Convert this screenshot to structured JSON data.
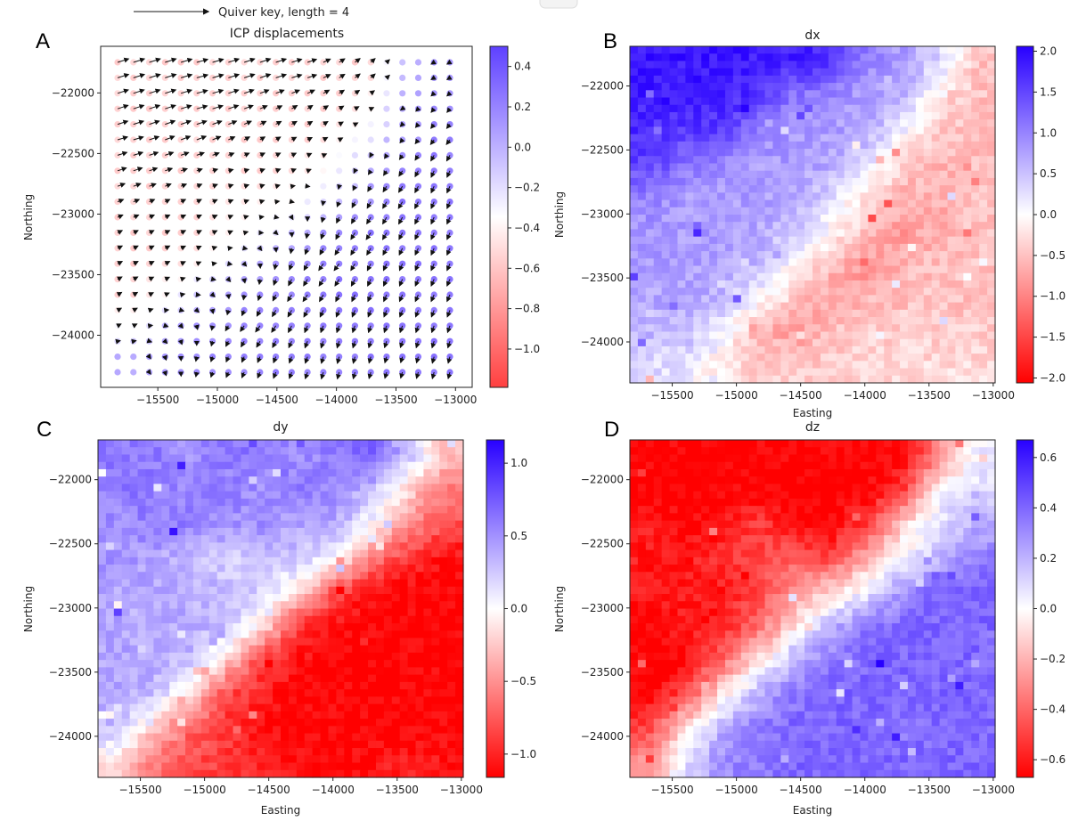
{
  "figure": {
    "panel_labels": [
      "A",
      "B",
      "C",
      "D"
    ],
    "quiver_key": {
      "label": "Quiver key, length = 4",
      "length": 4
    }
  },
  "colors": {
    "low": "#ff0000",
    "mid": "#ffffff",
    "high": "#2800ff",
    "arrow": "#111111"
  },
  "chart_data": [
    {
      "type": "quiver",
      "title": "ICP displacements",
      "ylabel": "Northing",
      "xlim": [
        -15980,
        -12860
      ],
      "ylim": [
        -24430,
        -21615
      ],
      "x_ticks": [
        "−15500",
        "−15000",
        "−14500",
        "−14000",
        "−13500",
        "−13000"
      ],
      "y_ticks": [
        "−22000",
        "−22500",
        "−23000",
        "−23500",
        "−24000"
      ],
      "clim": [
        -1.19,
        0.5
      ],
      "colorbar_ticks": [
        "0.4",
        "0.2",
        "0.0",
        "−0.2",
        "−0.4",
        "−0.6",
        "−0.8",
        "−1.0"
      ],
      "grid": false,
      "color_values": [
        [
          -0.6,
          -0.6,
          -0.6,
          -0.6,
          -0.6,
          -0.6,
          -0.6,
          -0.6,
          0.0,
          0.25
        ],
        [
          -0.6,
          -0.6,
          -0.6,
          -0.6,
          -0.6,
          -0.6,
          -0.6,
          -0.5,
          0.1,
          0.3
        ],
        [
          -0.6,
          -0.6,
          -0.6,
          -0.6,
          -0.6,
          -0.6,
          -0.5,
          -0.2,
          0.2,
          0.35
        ],
        [
          -0.6,
          -0.6,
          -0.6,
          -0.6,
          -0.6,
          -0.5,
          -0.3,
          0.1,
          0.3,
          0.4
        ],
        [
          -0.6,
          -0.6,
          -0.55,
          -0.5,
          -0.45,
          -0.3,
          0.0,
          0.25,
          0.4,
          0.4
        ],
        [
          -0.6,
          -0.6,
          -0.55,
          -0.45,
          -0.2,
          0.1,
          0.3,
          0.4,
          0.4,
          0.4
        ],
        [
          -0.6,
          -0.55,
          -0.4,
          -0.1,
          0.2,
          0.3,
          0.4,
          0.4,
          0.4,
          0.4
        ],
        [
          -0.6,
          -0.4,
          0.0,
          0.25,
          0.3,
          0.35,
          0.4,
          0.4,
          0.4,
          0.4
        ],
        [
          -0.3,
          0.1,
          0.25,
          0.3,
          0.35,
          0.35,
          0.4,
          0.4,
          0.4,
          0.4
        ],
        [
          0.1,
          0.25,
          0.3,
          0.3,
          0.35,
          0.35,
          0.35,
          0.4,
          0.4,
          0.4
        ]
      ]
    },
    {
      "type": "heatmap",
      "title": "dx",
      "xlabel": "Easting",
      "ylabel": "Northing",
      "xlim": [
        -15830,
        -12985
      ],
      "ylim": [
        -24320,
        -21690
      ],
      "x_ticks": [
        "−15500",
        "−15000",
        "−14500",
        "−14000",
        "−13500",
        "−13000"
      ],
      "y_ticks": [
        "−22000",
        "−22500",
        "−23000",
        "−23500",
        "−24000"
      ],
      "clim": [
        -2.06,
        2.06
      ],
      "colorbar_ticks": [
        "2.0",
        "1.5",
        "1.0",
        "0.5",
        "0.0",
        "−0.5",
        "−1.0",
        "−1.5",
        "−2.0"
      ],
      "grid": false,
      "values": [
        [
          1.9,
          1.9,
          1.9,
          1.8,
          1.8,
          1.7,
          1.0,
          0.8,
          0.3,
          -0.5
        ],
        [
          1.8,
          1.8,
          1.8,
          1.7,
          1.1,
          0.9,
          0.8,
          0.6,
          -0.3,
          -0.5
        ],
        [
          1.7,
          1.6,
          1.6,
          1.0,
          0.8,
          0.8,
          0.7,
          0.1,
          -0.4,
          -0.6
        ],
        [
          1.5,
          1.2,
          0.9,
          0.8,
          0.8,
          0.7,
          0.2,
          -0.4,
          -0.6,
          -0.5
        ],
        [
          1.0,
          0.8,
          0.8,
          0.8,
          0.7,
          0.3,
          -0.3,
          -0.6,
          -0.7,
          -0.5
        ],
        [
          0.8,
          0.8,
          0.8,
          0.7,
          0.5,
          -0.1,
          -0.5,
          -0.8,
          -0.6,
          -0.5
        ],
        [
          0.8,
          0.8,
          0.7,
          0.6,
          -0.1,
          -0.5,
          -0.9,
          -0.6,
          -0.5,
          -0.5
        ],
        [
          0.7,
          0.7,
          0.6,
          0.0,
          -0.4,
          -0.8,
          -0.6,
          -0.5,
          -0.5,
          -0.5
        ],
        [
          0.6,
          0.5,
          0.1,
          -0.6,
          -0.8,
          -0.5,
          -0.4,
          -0.4,
          -0.4,
          -0.4
        ],
        [
          0.3,
          0.2,
          -0.2,
          -0.4,
          -0.4,
          -0.4,
          -0.3,
          -0.3,
          -0.3,
          -0.3
        ]
      ]
    },
    {
      "type": "heatmap",
      "title": "dy",
      "xlabel": "Easting",
      "ylabel": "Northing",
      "xlim": [
        -15830,
        -12985
      ],
      "ylim": [
        -24320,
        -21690
      ],
      "x_ticks": [
        "−15500",
        "−15000",
        "−14500",
        "−14000",
        "−13500",
        "−13000"
      ],
      "y_ticks": [
        "−22000",
        "−22500",
        "−23000",
        "−23500",
        "−24000"
      ],
      "clim": [
        -1.16,
        1.16
      ],
      "colorbar_ticks": [
        "1.0",
        "0.5",
        "0.0",
        "−0.5",
        "−1.0"
      ],
      "grid": false,
      "values": [
        [
          0.6,
          0.6,
          0.5,
          0.6,
          0.6,
          0.5,
          0.6,
          0.7,
          0.3,
          -0.3
        ],
        [
          0.6,
          0.6,
          0.5,
          0.6,
          0.5,
          0.6,
          0.5,
          0.3,
          -0.2,
          -0.6
        ],
        [
          0.5,
          0.6,
          0.6,
          0.5,
          0.5,
          0.4,
          0.4,
          0.0,
          -0.5,
          -0.8
        ],
        [
          0.5,
          0.4,
          0.3,
          0.2,
          0.3,
          0.3,
          0.0,
          -0.6,
          -0.9,
          -1.1
        ],
        [
          0.4,
          0.4,
          0.4,
          0.3,
          0.2,
          -0.2,
          -0.8,
          -1.1,
          -1.15,
          -1.15
        ],
        [
          0.4,
          0.4,
          0.4,
          0.3,
          -0.1,
          -0.9,
          -1.1,
          -1.15,
          -1.15,
          -1.15
        ],
        [
          0.4,
          0.4,
          0.3,
          -0.2,
          -0.9,
          -1.1,
          -1.15,
          -1.15,
          -1.15,
          -1.15
        ],
        [
          0.4,
          0.3,
          -0.1,
          -0.8,
          -1.0,
          -1.15,
          -1.15,
          -1.15,
          -1.15,
          -1.15
        ],
        [
          0.3,
          -0.2,
          -0.7,
          -0.9,
          -1.1,
          -1.15,
          -1.15,
          -1.15,
          -1.15,
          -1.15
        ],
        [
          -0.1,
          -0.6,
          -0.8,
          -0.9,
          -1.0,
          -1.1,
          -1.15,
          -1.1,
          -1.0,
          -1.1
        ]
      ]
    },
    {
      "type": "heatmap",
      "title": "dz",
      "xlabel": "Easting",
      "ylabel": "Northing",
      "xlim": [
        -15830,
        -12985
      ],
      "ylim": [
        -24320,
        -21690
      ],
      "x_ticks": [
        "−15500",
        "−15000",
        "−14500",
        "−14000",
        "−13500",
        "−13000"
      ],
      "y_ticks": [
        "−22000",
        "−22500",
        "−23000",
        "−23500",
        "−24000"
      ],
      "clim": [
        -0.67,
        0.67
      ],
      "colorbar_ticks": [
        "0.6",
        "0.4",
        "0.2",
        "0.0",
        "−0.2",
        "−0.4",
        "−0.6"
      ],
      "grid": false,
      "values": [
        [
          -0.67,
          -0.67,
          -0.67,
          -0.67,
          -0.67,
          -0.67,
          -0.67,
          -0.67,
          -0.3,
          0.05
        ],
        [
          -0.67,
          -0.67,
          -0.67,
          -0.67,
          -0.67,
          -0.67,
          -0.67,
          -0.5,
          0.0,
          0.1
        ],
        [
          -0.6,
          -0.67,
          -0.6,
          -0.5,
          -0.67,
          -0.67,
          -0.5,
          -0.1,
          0.1,
          0.2
        ],
        [
          -0.6,
          -0.6,
          -0.55,
          -0.5,
          -0.4,
          -0.5,
          -0.2,
          0.0,
          0.2,
          0.35
        ],
        [
          -0.6,
          -0.6,
          -0.6,
          -0.5,
          -0.3,
          -0.1,
          0.05,
          0.3,
          0.4,
          0.4
        ],
        [
          -0.67,
          -0.6,
          -0.6,
          -0.4,
          -0.1,
          0.2,
          0.35,
          0.4,
          0.4,
          0.4
        ],
        [
          -0.67,
          -0.67,
          -0.4,
          -0.1,
          0.2,
          0.35,
          0.4,
          0.4,
          0.4,
          0.4
        ],
        [
          -0.67,
          -0.5,
          -0.1,
          0.2,
          0.35,
          0.4,
          0.4,
          0.4,
          0.4,
          0.4
        ],
        [
          -0.5,
          -0.1,
          0.2,
          0.35,
          0.4,
          0.4,
          0.4,
          0.35,
          0.4,
          0.4
        ],
        [
          -0.3,
          0.1,
          0.3,
          0.35,
          0.4,
          0.4,
          0.4,
          0.4,
          0.4,
          0.4
        ]
      ]
    }
  ]
}
